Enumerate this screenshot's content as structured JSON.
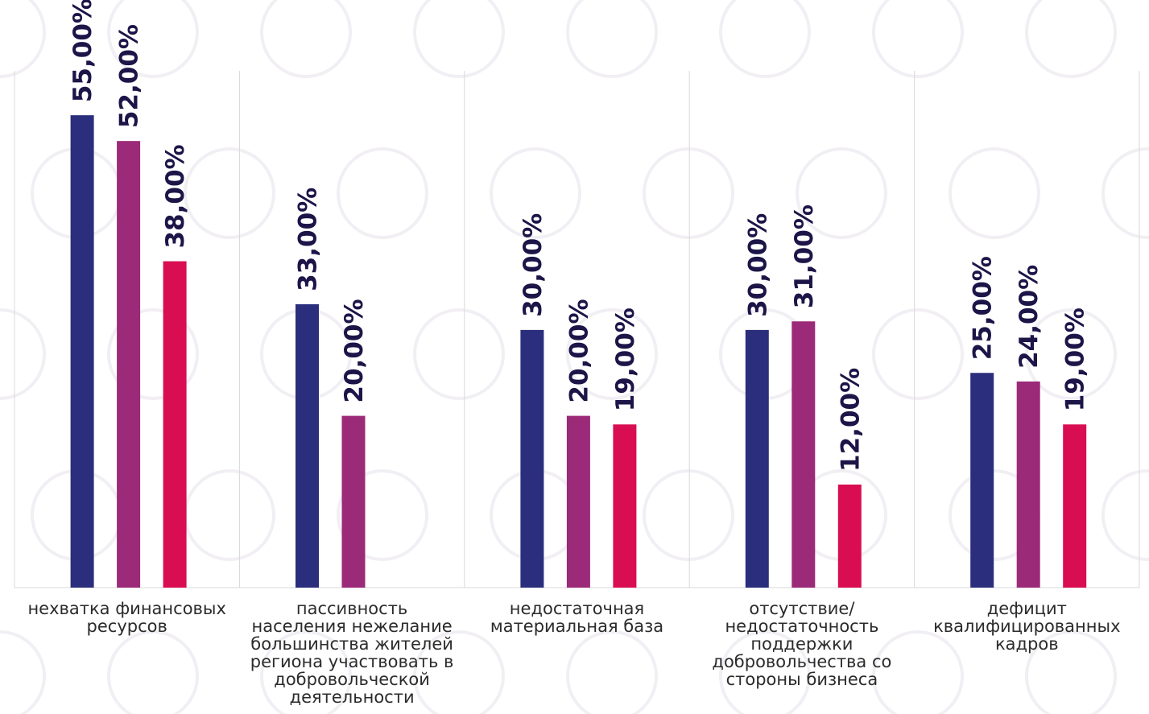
{
  "chart_data": {
    "type": "bar",
    "categories": [
      "нехватка финансовых ресурсов",
      "пассивность населения нежелание большинства жителей региона участвовать в добровольческой деятельности",
      "недостаточная материальная база",
      "отсутствие/ недостаточность поддержки добровольчества со стороны бизнеса",
      "дефицит квалифицированных кадров"
    ],
    "category_lines": [
      [
        "нехватка финансовых",
        "ресурсов"
      ],
      [
        "пассивность",
        "населения нежелание",
        "большинства жителей",
        "региона участвовать в",
        "добровольческой",
        "деятельности"
      ],
      [
        "недостаточная",
        "материальная база"
      ],
      [
        "отсутствие/",
        "недостаточность",
        "поддержки",
        "добровольчества со",
        "стороны бизнеса"
      ],
      [
        "дефицит",
        "квалифицированных",
        "кадров"
      ]
    ],
    "series": [
      {
        "color": "#2b2e7c",
        "values": [
          55,
          33,
          30,
          30,
          25
        ],
        "labels": [
          "55,00%",
          "33,00%",
          "30,00%",
          "30,00%",
          "25,00%"
        ]
      },
      {
        "color": "#9b2a78",
        "values": [
          52,
          20,
          20,
          31,
          24
        ],
        "labels": [
          "52,00%",
          "20,00%",
          "20,00%",
          "31,00%",
          "24,00%"
        ]
      },
      {
        "color": "#d90d52",
        "values": [
          38,
          null,
          19,
          12,
          19
        ],
        "labels": [
          "38,00%",
          "",
          "19,00%",
          "12,00%",
          "19,00%"
        ]
      }
    ],
    "ylim": [
      0,
      65
    ],
    "grid": "vertical separators between categories",
    "legend": "none"
  }
}
